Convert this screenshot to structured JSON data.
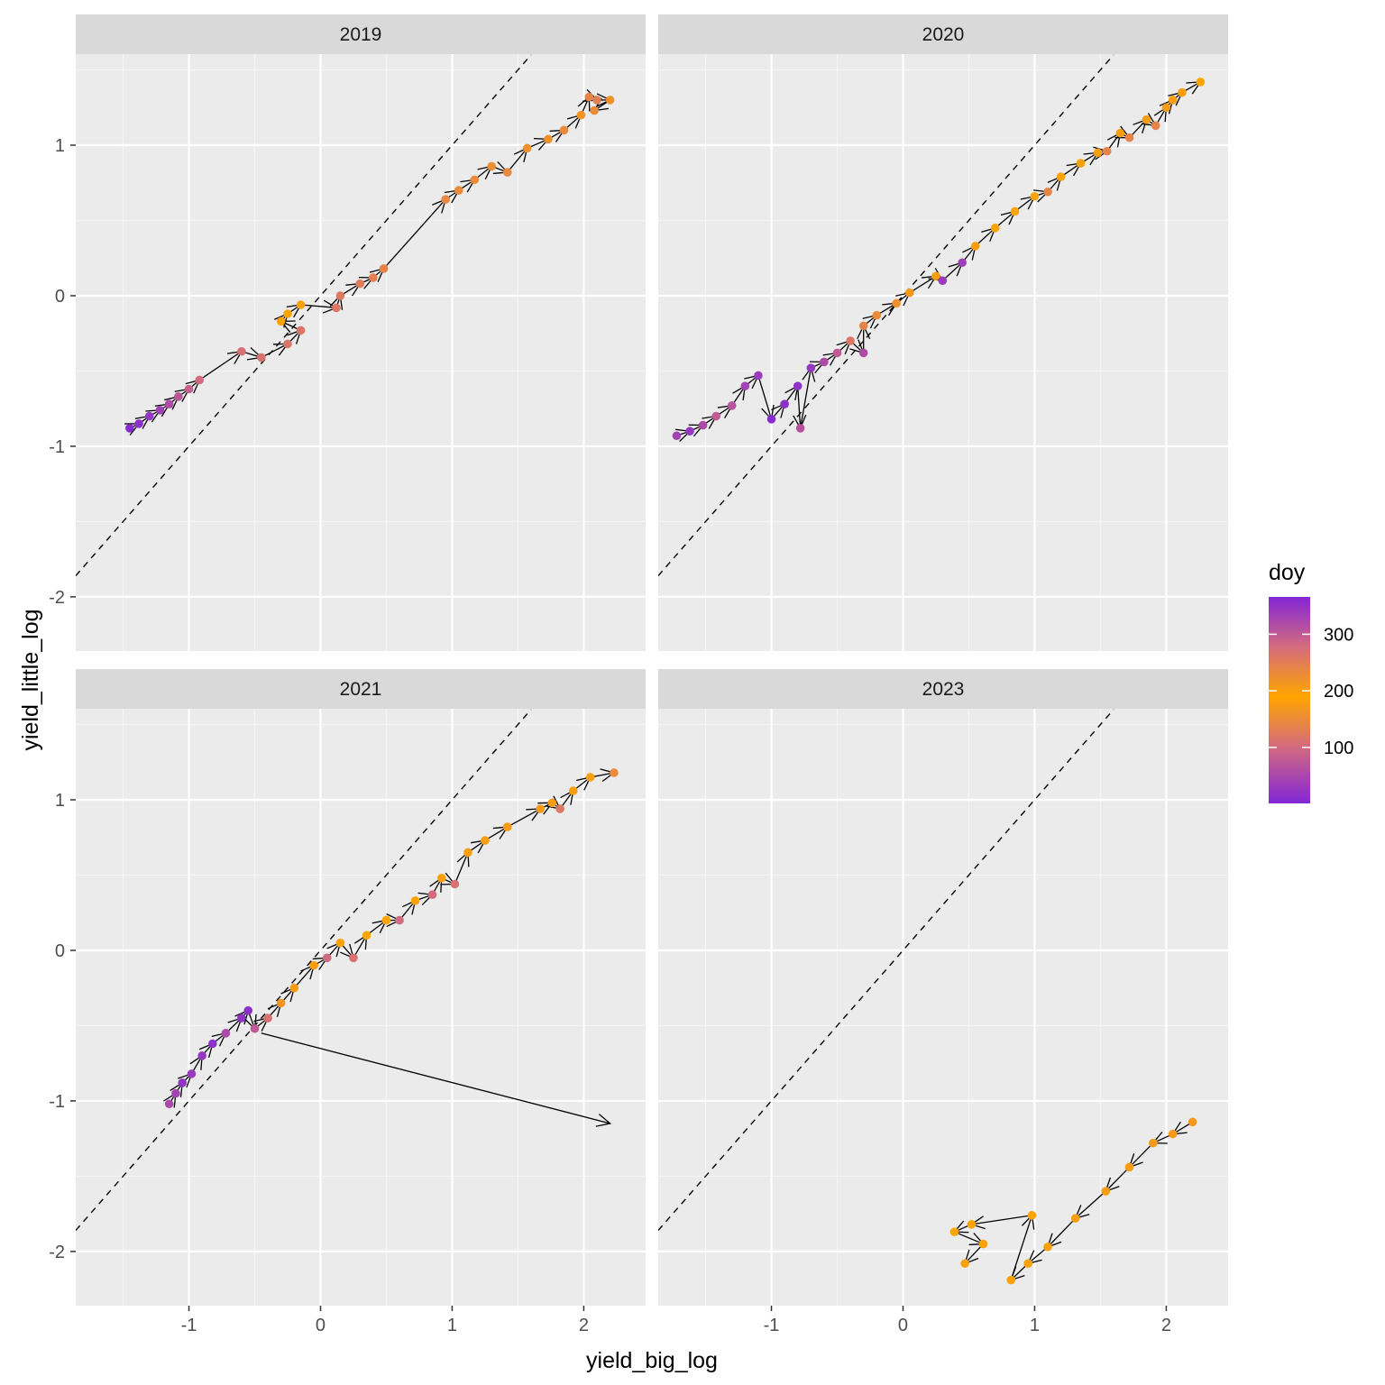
{
  "chart_data": {
    "type": "scatter",
    "subtype": "faceted path with arrows (geom_path + geom_point)",
    "xlabel": "yield_big_log",
    "ylabel": "yield_little_log",
    "xlim": [
      -1.86,
      2.47
    ],
    "ylim": [
      -2.36,
      1.605
    ],
    "x_ticks": [
      -1,
      0,
      1,
      2
    ],
    "y_ticks": [
      -2,
      -1,
      0,
      1
    ],
    "grid": true,
    "reference_line": {
      "slope": 1,
      "intercept": 0,
      "style": "dashed"
    },
    "color_scale": {
      "title": "doy",
      "ticks": [
        100,
        200,
        300
      ],
      "range": [
        1,
        366
      ],
      "stops": [
        {
          "value": 1,
          "color": "#8226D6"
        },
        {
          "value": 100,
          "color": "#D26A80"
        },
        {
          "value": 190,
          "color": "#FFA500"
        },
        {
          "value": 280,
          "color": "#D26A80"
        },
        {
          "value": 366,
          "color": "#8226D6"
        }
      ],
      "legend_position": "right"
    },
    "facets": [
      {
        "label": "2019",
        "points": [
          {
            "x": -1.45,
            "y": -0.88,
            "doy": 5
          },
          {
            "x": -1.38,
            "y": -0.85,
            "doy": 15
          },
          {
            "x": -1.3,
            "y": -0.8,
            "doy": 25
          },
          {
            "x": -1.22,
            "y": -0.76,
            "doy": 40
          },
          {
            "x": -1.15,
            "y": -0.72,
            "doy": 55
          },
          {
            "x": -1.08,
            "y": -0.67,
            "doy": 70
          },
          {
            "x": -1.0,
            "y": -0.62,
            "doy": 85
          },
          {
            "x": -0.92,
            "y": -0.56,
            "doy": 100
          },
          {
            "x": -0.6,
            "y": -0.37,
            "doy": 110
          },
          {
            "x": -0.45,
            "y": -0.41,
            "doy": 112
          },
          {
            "x": -0.25,
            "y": -0.32,
            "doy": 115
          },
          {
            "x": -0.15,
            "y": -0.23,
            "doy": 118
          },
          {
            "x": -0.3,
            "y": -0.17,
            "doy": 185
          },
          {
            "x": -0.25,
            "y": -0.12,
            "doy": 190
          },
          {
            "x": -0.15,
            "y": -0.06,
            "doy": 195
          },
          {
            "x": 0.12,
            "y": -0.08,
            "doy": 120
          },
          {
            "x": 0.15,
            "y": 0.0,
            "doy": 125
          },
          {
            "x": 0.3,
            "y": 0.08,
            "doy": 130
          },
          {
            "x": 0.4,
            "y": 0.12,
            "doy": 135
          },
          {
            "x": 0.48,
            "y": 0.18,
            "doy": 140
          },
          {
            "x": 0.95,
            "y": 0.64,
            "doy": 145
          },
          {
            "x": 1.05,
            "y": 0.7,
            "doy": 150
          },
          {
            "x": 1.17,
            "y": 0.77,
            "doy": 152
          },
          {
            "x": 1.3,
            "y": 0.86,
            "doy": 155
          },
          {
            "x": 1.42,
            "y": 0.82,
            "doy": 145
          },
          {
            "x": 1.57,
            "y": 0.98,
            "doy": 158
          },
          {
            "x": 1.73,
            "y": 1.04,
            "doy": 160
          },
          {
            "x": 1.85,
            "y": 1.1,
            "doy": 150
          },
          {
            "x": 1.98,
            "y": 1.2,
            "doy": 165
          },
          {
            "x": 2.04,
            "y": 1.32,
            "doy": 140
          },
          {
            "x": 2.1,
            "y": 1.3,
            "doy": 130
          },
          {
            "x": 2.2,
            "y": 1.3,
            "doy": 160
          },
          {
            "x": 2.08,
            "y": 1.23,
            "doy": 150
          }
        ]
      },
      {
        "label": "2020",
        "points": [
          {
            "x": -1.72,
            "y": -0.93,
            "doy": 330
          },
          {
            "x": -1.62,
            "y": -0.9,
            "doy": 345
          },
          {
            "x": -1.52,
            "y": -0.86,
            "doy": 320
          },
          {
            "x": -1.42,
            "y": -0.8,
            "doy": 300
          },
          {
            "x": -1.3,
            "y": -0.73,
            "doy": 310
          },
          {
            "x": -1.2,
            "y": -0.6,
            "doy": 330
          },
          {
            "x": -1.1,
            "y": -0.53,
            "doy": 340
          },
          {
            "x": -1.0,
            "y": -0.82,
            "doy": 360
          },
          {
            "x": -0.9,
            "y": -0.72,
            "doy": 355
          },
          {
            "x": -0.8,
            "y": -0.6,
            "doy": 350
          },
          {
            "x": -0.78,
            "y": -0.88,
            "doy": 310
          },
          {
            "x": -0.7,
            "y": -0.48,
            "doy": 345
          },
          {
            "x": -0.6,
            "y": -0.44,
            "doy": 320
          },
          {
            "x": -0.5,
            "y": -0.38,
            "doy": 300
          },
          {
            "x": -0.4,
            "y": -0.3,
            "doy": 260
          },
          {
            "x": -0.3,
            "y": -0.38,
            "doy": 320
          },
          {
            "x": -0.3,
            "y": -0.2,
            "doy": 240
          },
          {
            "x": -0.2,
            "y": -0.13,
            "doy": 230
          },
          {
            "x": -0.05,
            "y": -0.05,
            "doy": 220
          },
          {
            "x": 0.05,
            "y": 0.02,
            "doy": 210
          },
          {
            "x": 0.25,
            "y": 0.13,
            "doy": 200
          },
          {
            "x": 0.3,
            "y": 0.1,
            "doy": 340
          },
          {
            "x": 0.45,
            "y": 0.22,
            "doy": 335
          },
          {
            "x": 0.55,
            "y": 0.33,
            "doy": 200
          },
          {
            "x": 0.7,
            "y": 0.45,
            "doy": 195
          },
          {
            "x": 0.85,
            "y": 0.56,
            "doy": 190
          },
          {
            "x": 1.0,
            "y": 0.66,
            "doy": 188
          },
          {
            "x": 1.1,
            "y": 0.69,
            "doy": 140
          },
          {
            "x": 1.2,
            "y": 0.79,
            "doy": 185
          },
          {
            "x": 1.35,
            "y": 0.88,
            "doy": 183
          },
          {
            "x": 1.48,
            "y": 0.95,
            "doy": 180
          },
          {
            "x": 1.55,
            "y": 0.96,
            "doy": 140
          },
          {
            "x": 1.65,
            "y": 1.08,
            "doy": 178
          },
          {
            "x": 1.72,
            "y": 1.05,
            "doy": 140
          },
          {
            "x": 1.85,
            "y": 1.17,
            "doy": 176
          },
          {
            "x": 1.92,
            "y": 1.13,
            "doy": 140
          },
          {
            "x": 2.0,
            "y": 1.25,
            "doy": 175
          },
          {
            "x": 2.05,
            "y": 1.3,
            "doy": 178
          },
          {
            "x": 2.12,
            "y": 1.35,
            "doy": 180
          },
          {
            "x": 2.26,
            "y": 1.42,
            "doy": 190
          }
        ]
      },
      {
        "label": "2021",
        "points": [
          {
            "x": -1.15,
            "y": -1.02,
            "doy": 320
          },
          {
            "x": -1.1,
            "y": -0.95,
            "doy": 330
          },
          {
            "x": -1.05,
            "y": -0.88,
            "doy": 350
          },
          {
            "x": -0.98,
            "y": -0.82,
            "doy": 340
          },
          {
            "x": -0.9,
            "y": -0.7,
            "doy": 345
          },
          {
            "x": -0.82,
            "y": -0.62,
            "doy": 355
          },
          {
            "x": -0.72,
            "y": -0.55,
            "doy": 320
          },
          {
            "x": -0.6,
            "y": -0.45,
            "doy": 350
          },
          {
            "x": -0.55,
            "y": -0.4,
            "doy": 355
          },
          {
            "x": -0.5,
            "y": -0.52,
            "doy": 300
          },
          {
            "x": -0.4,
            "y": -0.45,
            "doy": 270
          },
          {
            "x": -0.3,
            "y": -0.35,
            "doy": 215
          },
          {
            "x": -0.2,
            "y": -0.25,
            "doy": 205
          },
          {
            "x": -0.05,
            "y": -0.1,
            "doy": 200
          },
          {
            "x": 0.05,
            "y": -0.05,
            "doy": 280
          },
          {
            "x": 0.15,
            "y": 0.05,
            "doy": 195
          },
          {
            "x": 0.25,
            "y": -0.05,
            "doy": 270
          },
          {
            "x": 0.35,
            "y": 0.1,
            "doy": 190
          },
          {
            "x": 0.5,
            "y": 0.2,
            "doy": 188
          },
          {
            "x": 0.6,
            "y": 0.2,
            "doy": 280
          },
          {
            "x": 0.72,
            "y": 0.33,
            "doy": 185
          },
          {
            "x": 0.85,
            "y": 0.37,
            "doy": 280
          },
          {
            "x": 0.92,
            "y": 0.48,
            "doy": 183
          },
          {
            "x": 1.02,
            "y": 0.44,
            "doy": 110
          },
          {
            "x": 1.12,
            "y": 0.65,
            "doy": 180
          },
          {
            "x": 1.25,
            "y": 0.73,
            "doy": 178
          },
          {
            "x": 1.42,
            "y": 0.82,
            "doy": 176
          },
          {
            "x": 1.67,
            "y": 0.94,
            "doy": 175
          },
          {
            "x": 1.76,
            "y": 0.98,
            "doy": 178
          },
          {
            "x": 1.82,
            "y": 0.94,
            "doy": 120
          },
          {
            "x": 1.92,
            "y": 1.06,
            "doy": 180
          },
          {
            "x": 2.05,
            "y": 1.15,
            "doy": 182
          },
          {
            "x": 2.23,
            "y": 1.18,
            "doy": 150
          }
        ],
        "extra_arrow": {
          "from": {
            "x": -0.45,
            "y": -0.55
          },
          "to": {
            "x": 2.2,
            "y": -1.15
          }
        }
      },
      {
        "label": "2023",
        "points": [
          {
            "x": 2.2,
            "y": -1.14,
            "doy": 170
          },
          {
            "x": 2.05,
            "y": -1.22,
            "doy": 172
          },
          {
            "x": 1.9,
            "y": -1.28,
            "doy": 174
          },
          {
            "x": 1.72,
            "y": -1.44,
            "doy": 176
          },
          {
            "x": 1.54,
            "y": -1.6,
            "doy": 178
          },
          {
            "x": 1.31,
            "y": -1.78,
            "doy": 180
          },
          {
            "x": 1.1,
            "y": -1.97,
            "doy": 182
          },
          {
            "x": 0.95,
            "y": -2.08,
            "doy": 184
          },
          {
            "x": 0.82,
            "y": -2.19,
            "doy": 186
          },
          {
            "x": 0.98,
            "y": -1.76,
            "doy": 188
          },
          {
            "x": 0.52,
            "y": -1.82,
            "doy": 190
          },
          {
            "x": 0.39,
            "y": -1.87,
            "doy": 192
          },
          {
            "x": 0.61,
            "y": -1.95,
            "doy": 194
          },
          {
            "x": 0.47,
            "y": -2.08,
            "doy": 196
          }
        ]
      }
    ]
  }
}
